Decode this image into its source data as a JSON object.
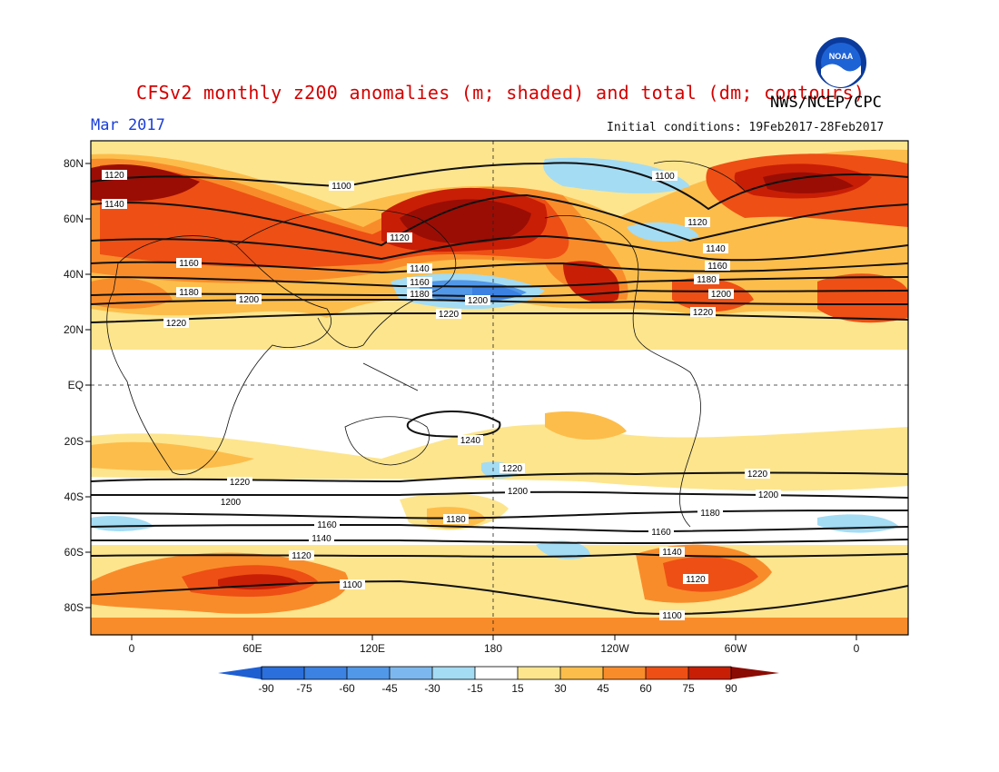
{
  "title": "CFSv2 monthly z200 anomalies (m; shaded) and total (dm; contours)",
  "agency": "NWS/NCEP/CPC",
  "period": "Mar 2017",
  "initial_conditions": "Initial conditions: 19Feb2017-28Feb2017",
  "logo_text": "NOAA",
  "lat_labels": [
    "80N",
    "60N",
    "40N",
    "20N",
    "EQ",
    "20S",
    "40S",
    "60S",
    "80S"
  ],
  "lon_labels": [
    "0",
    "60E",
    "120E",
    "180",
    "120W",
    "60W",
    "0"
  ],
  "colorbar": {
    "ticks": [
      "-90",
      "-75",
      "-60",
      "-45",
      "-30",
      "-15",
      "15",
      "30",
      "45",
      "60",
      "75",
      "90"
    ],
    "colors": [
      "#2a6fdc",
      "#3b82e2",
      "#5298e8",
      "#7cb8ef",
      "#a4dcf4",
      "#ffffff",
      "#fde58e",
      "#fdbd4a",
      "#f98c2a",
      "#ee4f14",
      "#c81e06",
      "#9a0d04"
    ],
    "arrow_low": "#1e5fd2",
    "arrow_high": "#8a0b03"
  },
  "contour_labels": [
    {
      "id": "1120-a",
      "text": "1120"
    },
    {
      "id": "1140-a",
      "text": "1140"
    },
    {
      "id": "1100-a",
      "text": "1100"
    },
    {
      "id": "1120-b",
      "text": "1120"
    },
    {
      "id": "1100-b",
      "text": "1100"
    },
    {
      "id": "1120-c",
      "text": "1120"
    },
    {
      "id": "1140-b",
      "text": "1140"
    },
    {
      "id": "1160-a",
      "text": "1160"
    },
    {
      "id": "1180-a",
      "text": "1180"
    },
    {
      "id": "1140-c",
      "text": "1140"
    },
    {
      "id": "1160-b",
      "text": "1160"
    },
    {
      "id": "1180-b",
      "text": "1180"
    },
    {
      "id": "1200-a",
      "text": "1200"
    },
    {
      "id": "1200-b",
      "text": "1200"
    },
    {
      "id": "1220-a",
      "text": "1220"
    },
    {
      "id": "1220-b",
      "text": "1220"
    },
    {
      "id": "1160-c",
      "text": "1160"
    },
    {
      "id": "1180-c",
      "text": "1180"
    },
    {
      "id": "1200-c",
      "text": "1200"
    },
    {
      "id": "1220-c",
      "text": "1220"
    },
    {
      "id": "1240-a",
      "text": "1240"
    },
    {
      "id": "1220-d",
      "text": "1220"
    },
    {
      "id": "1200-d",
      "text": "1200"
    },
    {
      "id": "1220-e",
      "text": "1220"
    },
    {
      "id": "1200-e",
      "text": "1200"
    },
    {
      "id": "1180-d",
      "text": "1180"
    },
    {
      "id": "1160-d",
      "text": "1160"
    },
    {
      "id": "1140-d",
      "text": "1140"
    },
    {
      "id": "1120-d",
      "text": "1120"
    },
    {
      "id": "1100-c",
      "text": "1100"
    },
    {
      "id": "1220-f",
      "text": "1220"
    },
    {
      "id": "1200-f",
      "text": "1200"
    },
    {
      "id": "1180-e",
      "text": "1180"
    },
    {
      "id": "1160-e",
      "text": "1160"
    },
    {
      "id": "1140-e",
      "text": "1140"
    },
    {
      "id": "1120-e",
      "text": "1120"
    },
    {
      "id": "1100-d",
      "text": "1100"
    }
  ]
}
